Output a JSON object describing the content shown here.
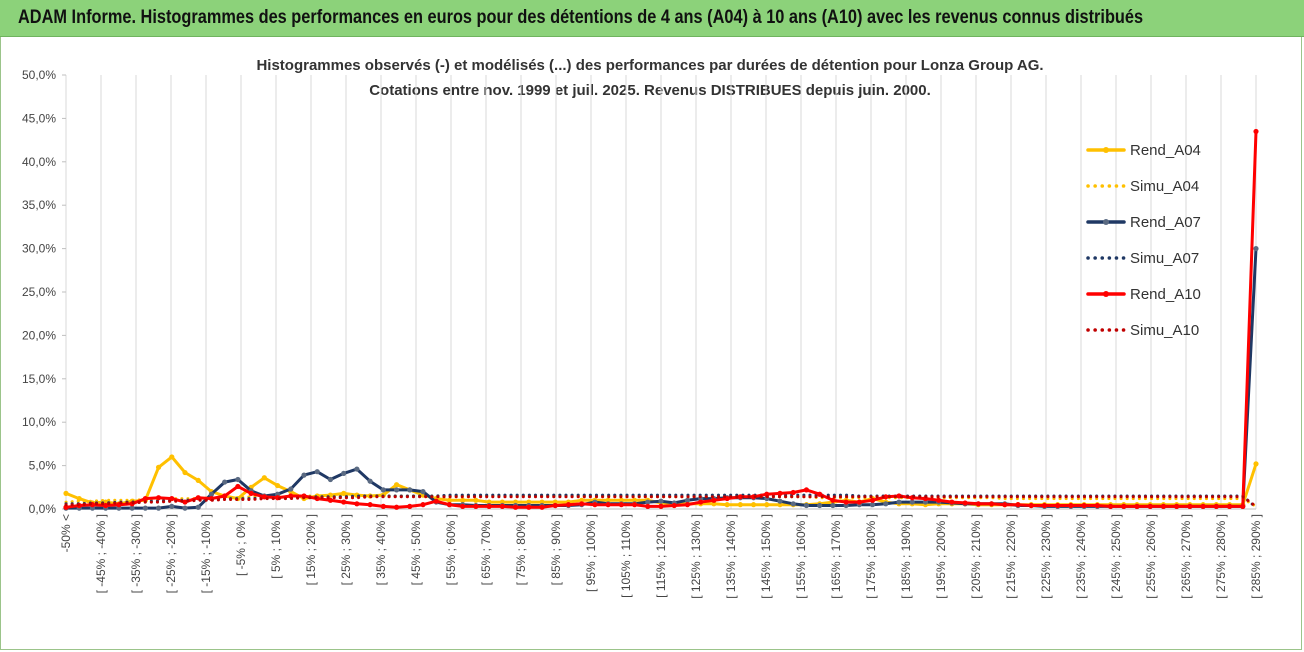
{
  "banner": {
    "title": "ADAM Informe. Histogrammes des performances en euros pour des détentions de 4 ans (A04) à 10 ans (A10) avec les revenus connus distribués"
  },
  "chart_data": {
    "type": "line",
    "title": "Histogrammes observés (-) et modélisés (...) des performances par durées de détention pour Lonza Group AG.",
    "subtitle": "Cotations entre nov. 1999 et juil. 2025. Revenus DISTRIBUES depuis juin. 2000.",
    "xlabel": "",
    "ylabel": "",
    "ylim": [
      0,
      50
    ],
    "y_ticks": [
      "0,0%",
      "5,0%",
      "10,0%",
      "15,0%",
      "20,0%",
      "25,0%",
      "30,0%",
      "35,0%",
      "40,0%",
      "45,0%",
      "50,0%"
    ],
    "grid": "vertical",
    "legend_position": "right",
    "x_tick_labels": [
      "-50% <",
      "[ -45% ; -40% ]",
      "[ -35% ; -30% ]",
      "[ -25% ; -20% ]",
      "[ -15% ; -10% ]",
      "[ -5% ; 0% ]",
      "[ 5% ; 10% ]",
      "[ 15% ; 20% ]",
      "[ 25% ; 30% ]",
      "[ 35% ; 40% ]",
      "[ 45% ; 50% ]",
      "[ 55% ; 60% ]",
      "[ 65% ; 70% ]",
      "[ 75% ; 80% ]",
      "[ 85% ; 90% ]",
      "[ 95% ; 100% ]",
      "[ 105% ; 110% ]",
      "[ 115% ; 120% ]",
      "[ 125% ; 130% ]",
      "[ 135% ; 140% ]",
      "[ 145% ; 150% ]",
      "[ 155% ; 160% ]",
      "[ 165% ; 170% ]",
      "[ 175% ; 180% ]",
      "[ 185% ; 190% ]",
      "[ 195% ; 200% ]",
      "[ 205% ; 210% ]",
      "[ 215% ; 220% ]",
      "[ 225% ; 230% ]",
      "[ 235% ; 240% ]",
      "[ 245% ; 250% ]",
      "[ 255% ; 260% ]",
      "[ 265% ; 270% ]",
      "[ 275% ; 280% ]",
      "[ 285% ; 290% ]"
    ],
    "series": [
      {
        "name": "Rend_A04",
        "style": "solid",
        "color": "#ffc000",
        "marker": "#ffc000",
        "values": [
          1.8,
          1.2,
          0.7,
          0.8,
          0.6,
          0.9,
          1.0,
          4.8,
          6.0,
          4.2,
          3.3,
          2.0,
          1.5,
          1.2,
          2.5,
          3.6,
          2.7,
          2.0,
          1.2,
          1.5,
          1.6,
          1.8,
          1.6,
          1.5,
          1.6,
          2.8,
          2.2,
          1.6,
          1.2,
          1.0,
          1.0,
          1.0,
          0.8,
          0.8,
          0.8,
          0.8,
          0.8,
          0.8,
          0.8,
          1.0,
          1.0,
          1.0,
          1.0,
          1.0,
          1.0,
          0.7,
          0.6,
          0.6,
          0.6,
          0.6,
          0.5,
          0.5,
          0.5,
          0.5,
          0.5,
          0.5,
          0.5,
          0.6,
          0.8,
          1.0,
          0.8,
          1.2,
          0.8,
          0.6,
          0.6,
          0.5,
          0.6,
          0.6,
          0.6,
          0.5,
          0.5,
          0.5,
          0.5,
          0.5,
          0.5,
          0.5,
          0.5,
          0.5,
          0.5,
          0.5,
          0.5,
          0.5,
          0.5,
          0.5,
          0.5,
          0.5,
          0.5,
          0.5,
          0.5,
          0.5,
          5.2
        ]
      },
      {
        "name": "Simu_A04",
        "style": "dotted",
        "color": "#ffc000",
        "values": [
          0.8,
          0.9,
          0.9,
          1.0,
          1.0,
          1.0,
          1.1,
          1.1,
          1.2,
          1.2,
          1.2,
          1.3,
          1.3,
          1.3,
          1.4,
          1.4,
          1.4,
          1.4,
          1.5,
          1.5,
          1.5,
          1.5,
          1.5,
          1.5,
          1.5,
          1.5,
          1.5,
          1.5,
          1.5,
          1.5,
          1.5,
          1.5,
          1.5,
          1.5,
          1.5,
          1.5,
          1.5,
          1.5,
          1.5,
          1.5,
          1.5,
          1.5,
          1.5,
          1.5,
          1.4,
          1.4,
          1.4,
          1.4,
          1.4,
          1.4,
          1.4,
          1.4,
          1.4,
          1.4,
          1.4,
          1.4,
          1.4,
          1.3,
          1.3,
          1.3,
          1.3,
          1.3,
          1.3,
          1.3,
          1.3,
          1.3,
          1.3,
          1.3,
          1.3,
          1.3,
          1.3,
          1.2,
          1.2,
          1.2,
          1.2,
          1.2,
          1.2,
          1.2,
          1.2,
          1.2,
          1.2,
          1.2,
          1.2,
          1.2,
          1.2,
          1.2,
          1.2,
          1.2,
          1.2,
          1.2,
          0.3
        ]
      },
      {
        "name": "Rend_A07",
        "style": "solid",
        "color": "#1f3864",
        "marker": "#5a6a82",
        "values": [
          0.1,
          0.1,
          0.1,
          0.1,
          0.1,
          0.1,
          0.1,
          0.1,
          0.3,
          0.1,
          0.2,
          1.7,
          3.1,
          3.4,
          2.1,
          1.5,
          1.7,
          2.3,
          3.9,
          4.3,
          3.4,
          4.1,
          4.6,
          3.2,
          2.2,
          2.2,
          2.2,
          2.0,
          0.8,
          0.5,
          0.5,
          0.4,
          0.4,
          0.4,
          0.4,
          0.4,
          0.4,
          0.4,
          0.4,
          0.5,
          0.8,
          0.6,
          0.6,
          0.6,
          0.8,
          0.9,
          0.7,
          1.0,
          1.2,
          1.2,
          1.3,
          1.3,
          1.3,
          1.2,
          0.9,
          0.6,
          0.4,
          0.4,
          0.4,
          0.4,
          0.5,
          0.5,
          0.6,
          0.8,
          0.8,
          0.8,
          0.8,
          0.7,
          0.6,
          0.6,
          0.6,
          0.6,
          0.4,
          0.4,
          0.3,
          0.3,
          0.3,
          0.3,
          0.3,
          0.3,
          0.3,
          0.3,
          0.3,
          0.3,
          0.3,
          0.3,
          0.3,
          0.3,
          0.3,
          0.3,
          30.0
        ]
      },
      {
        "name": "Simu_A07",
        "style": "dotted",
        "color": "#1f3864",
        "values": [
          0.6,
          0.6,
          0.7,
          0.7,
          0.8,
          0.8,
          0.9,
          0.9,
          1.0,
          1.0,
          1.1,
          1.1,
          1.2,
          1.2,
          1.2,
          1.3,
          1.3,
          1.3,
          1.4,
          1.4,
          1.4,
          1.4,
          1.5,
          1.5,
          1.5,
          1.5,
          1.5,
          1.5,
          1.5,
          1.6,
          1.6,
          1.6,
          1.6,
          1.6,
          1.6,
          1.6,
          1.6,
          1.6,
          1.6,
          1.6,
          1.6,
          1.6,
          1.6,
          1.6,
          1.6,
          1.6,
          1.6,
          1.6,
          1.6,
          1.6,
          1.6,
          1.6,
          1.6,
          1.6,
          1.6,
          1.6,
          1.6,
          1.6,
          1.6,
          1.6,
          1.5,
          1.5,
          1.5,
          1.5,
          1.5,
          1.5,
          1.5,
          1.5,
          1.5,
          1.5,
          1.5,
          1.5,
          1.5,
          1.5,
          1.5,
          1.5,
          1.5,
          1.5,
          1.5,
          1.5,
          1.5,
          1.5,
          1.5,
          1.5,
          1.5,
          1.5,
          1.5,
          1.5,
          1.5,
          1.5,
          0.2
        ]
      },
      {
        "name": "Rend_A10",
        "style": "solid",
        "color": "#ff0000",
        "marker": "#ff0000",
        "values": [
          0.2,
          0.4,
          0.5,
          0.4,
          0.5,
          0.6,
          1.2,
          1.3,
          1.2,
          0.8,
          1.3,
          1.2,
          1.5,
          2.6,
          1.8,
          1.4,
          1.3,
          1.5,
          1.5,
          1.2,
          1.0,
          0.8,
          0.6,
          0.5,
          0.3,
          0.2,
          0.3,
          0.5,
          0.9,
          0.5,
          0.3,
          0.3,
          0.3,
          0.3,
          0.2,
          0.2,
          0.2,
          0.4,
          0.5,
          0.6,
          0.5,
          0.5,
          0.5,
          0.5,
          0.3,
          0.3,
          0.4,
          0.5,
          0.8,
          1.0,
          1.2,
          1.4,
          1.4,
          1.7,
          1.8,
          1.9,
          2.2,
          1.7,
          1.0,
          0.8,
          0.8,
          1.0,
          1.4,
          1.5,
          1.3,
          1.2,
          1.0,
          0.8,
          0.7,
          0.6,
          0.6,
          0.5,
          0.5,
          0.4,
          0.4,
          0.4,
          0.4,
          0.4,
          0.4,
          0.3,
          0.3,
          0.3,
          0.3,
          0.3,
          0.3,
          0.3,
          0.3,
          0.3,
          0.3,
          0.3,
          43.5
        ]
      },
      {
        "name": "Simu_A10",
        "style": "dotted",
        "color": "#c00000",
        "values": [
          0.5,
          0.5,
          0.6,
          0.6,
          0.7,
          0.7,
          0.8,
          0.8,
          0.9,
          0.9,
          1.0,
          1.0,
          1.1,
          1.1,
          1.1,
          1.2,
          1.2,
          1.2,
          1.3,
          1.3,
          1.3,
          1.3,
          1.3,
          1.4,
          1.4,
          1.4,
          1.4,
          1.4,
          1.4,
          1.4,
          1.4,
          1.4,
          1.4,
          1.4,
          1.4,
          1.4,
          1.4,
          1.4,
          1.4,
          1.4,
          1.4,
          1.4,
          1.4,
          1.4,
          1.4,
          1.4,
          1.4,
          1.4,
          1.4,
          1.4,
          1.4,
          1.4,
          1.4,
          1.4,
          1.4,
          1.4,
          1.4,
          1.4,
          1.4,
          1.4,
          1.4,
          1.4,
          1.4,
          1.4,
          1.4,
          1.4,
          1.4,
          1.4,
          1.4,
          1.4,
          1.4,
          1.4,
          1.4,
          1.4,
          1.4,
          1.4,
          1.4,
          1.4,
          1.4,
          1.4,
          1.4,
          1.4,
          1.4,
          1.4,
          1.4,
          1.4,
          1.4,
          1.4,
          1.4,
          1.4,
          0.3
        ]
      }
    ]
  }
}
